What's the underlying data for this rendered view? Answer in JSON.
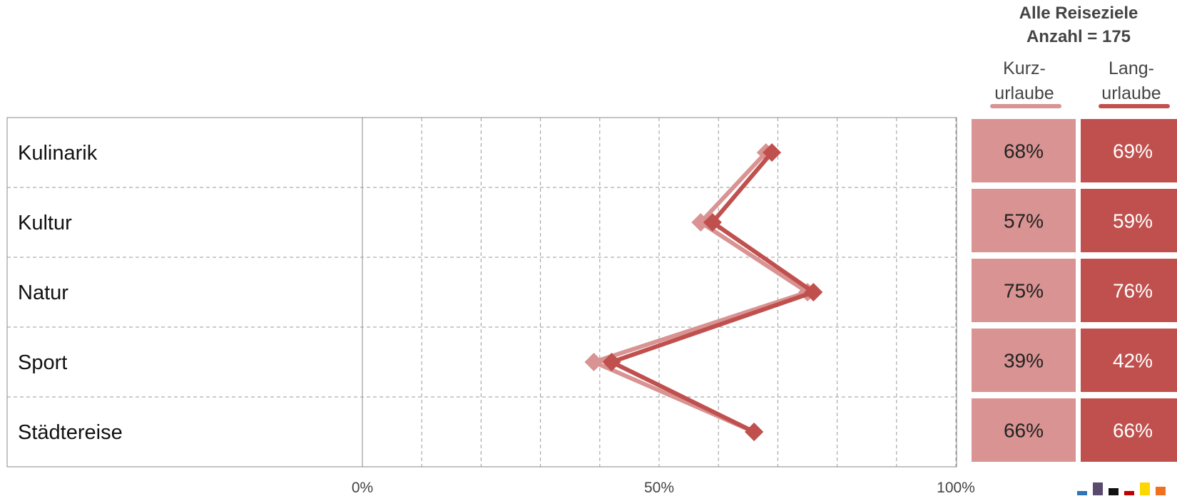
{
  "header": {
    "title_line1": "Alle Reiseziele",
    "title_line2": "Anzahl = 175"
  },
  "columns": [
    {
      "line1": "Kurz-",
      "line2": "urlaube",
      "color": "#d89392"
    },
    {
      "line1": "Lang-",
      "line2": "urlaube",
      "color": "#c0504d"
    }
  ],
  "colors": {
    "short": "#d89392",
    "long": "#c0504d",
    "grid": "#999999",
    "frame": "#888888",
    "long_text": "#ffffff",
    "short_text": "#222222"
  },
  "chart_data": {
    "type": "line",
    "orientation": "horizontal",
    "categories": [
      "Kulinarik",
      "Kultur",
      "Natur",
      "Sport",
      "Städtereise"
    ],
    "series": [
      {
        "name": "Kurzurlaube",
        "values": [
          68,
          57,
          75,
          39,
          66
        ],
        "labels": [
          "68%",
          "57%",
          "75%",
          "39%",
          "66%"
        ]
      },
      {
        "name": "Langurlaube",
        "values": [
          69,
          59,
          76,
          42,
          66
        ],
        "labels": [
          "69%",
          "59%",
          "76%",
          "42%",
          "66%"
        ]
      }
    ],
    "xlim": [
      0,
      100
    ],
    "ticks": [
      {
        "value": 0,
        "label": "0%"
      },
      {
        "value": 50,
        "label": "50%"
      },
      {
        "value": 100,
        "label": "100%"
      }
    ],
    "grid": true
  },
  "legend_swatches": [
    "#2e75b6",
    "#5a4a6e",
    "#111111",
    "#c00000",
    "#ffd700",
    "#f07020"
  ]
}
